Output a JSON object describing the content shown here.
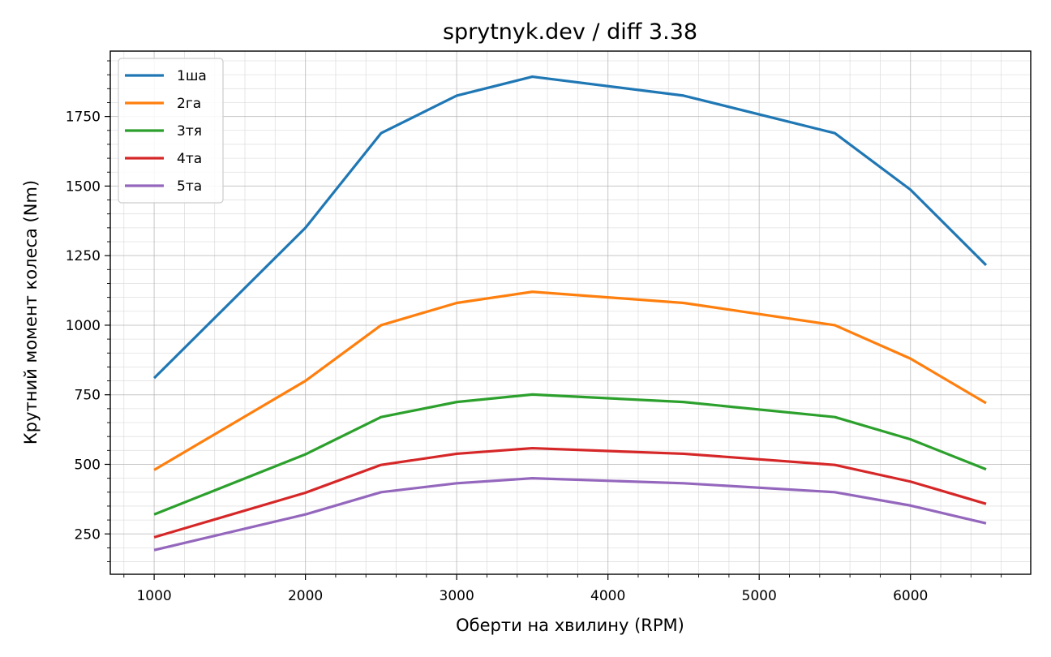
{
  "chart_data": {
    "type": "line",
    "title": "sprytnyk.dev / diff 3.38",
    "xlabel": "Оберти на хвилину (RPM)",
    "ylabel": "Крутний момент колеса (Nm)",
    "xlim": [
      710,
      6795
    ],
    "ylim": [
      105,
      1985
    ],
    "x_ticks": [
      1000,
      2000,
      3000,
      4000,
      5000,
      6000
    ],
    "y_ticks": [
      250,
      500,
      750,
      1000,
      1250,
      1500,
      1750
    ],
    "x_minor_step": 200,
    "y_minor_step": 50,
    "grid": true,
    "legend_position": "upper-left",
    "x": [
      1000,
      2000,
      2500,
      3000,
      3500,
      4500,
      5500,
      6000,
      6500
    ],
    "series": [
      {
        "name": "1ша",
        "color": "#1f77b4",
        "values": [
          810,
          1350,
          1690,
          1825,
          1893,
          1825,
          1690,
          1487,
          1216
        ]
      },
      {
        "name": "2га",
        "color": "#ff7f0e",
        "values": [
          480,
          800,
          1000,
          1080,
          1120,
          1080,
          1000,
          880,
          720
        ]
      },
      {
        "name": "3тя",
        "color": "#2ca02c",
        "values": [
          320,
          536,
          670,
          724,
          751,
          724,
          670,
          590,
          482
        ]
      },
      {
        "name": "4та",
        "color": "#d62728",
        "values": [
          238,
          398,
          498,
          538,
          558,
          538,
          498,
          438,
          358
        ]
      },
      {
        "name": "5та",
        "color": "#9467bd",
        "values": [
          192,
          320,
          400,
          432,
          450,
          432,
          400,
          352,
          288
        ]
      }
    ]
  }
}
